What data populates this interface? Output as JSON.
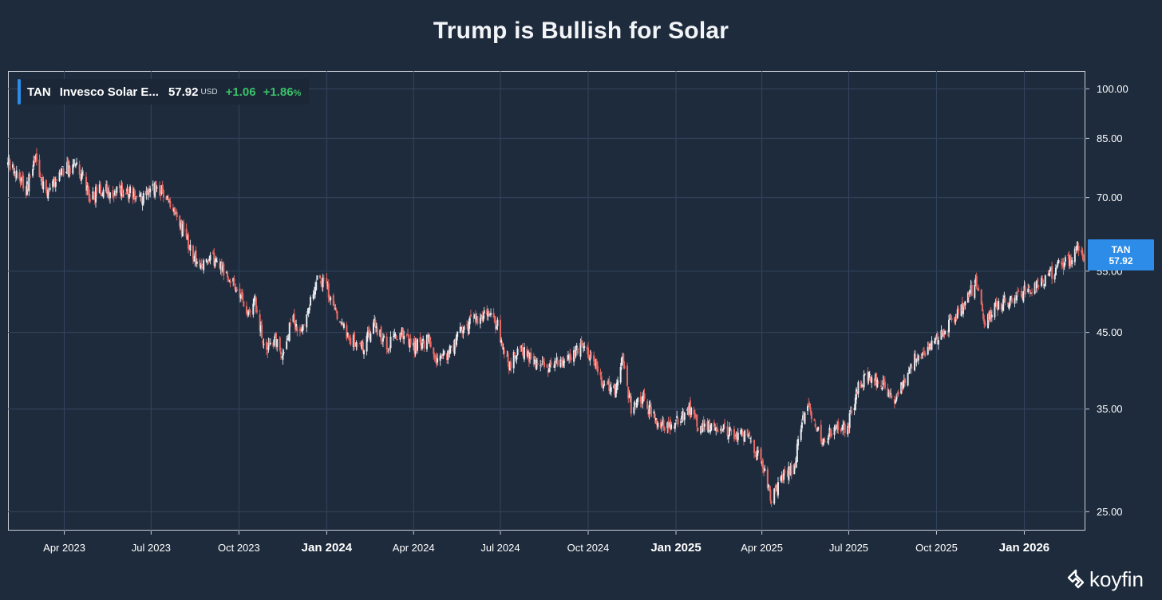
{
  "title": "Trump is Bullish for Solar",
  "legend": {
    "ticker": "TAN",
    "name": "Invesco Solar E...",
    "price": "57.92",
    "currency": "USD",
    "change": "+1.06",
    "change_pct": "+1.86",
    "pct_sign": "%"
  },
  "price_tag": {
    "ticker": "TAN",
    "price": "57.92"
  },
  "brand": "koyfin",
  "colors": {
    "background": "#1e2b3c",
    "grid": "#33465e",
    "candle_down": "#e86a64",
    "candle_up": "#e8ecf1",
    "accent": "#2c8ce8",
    "positive": "#3cc06a"
  },
  "chart_data": {
    "type": "candlestick",
    "title": "Trump is Bullish for Solar",
    "series_name": "TAN",
    "scale": "log",
    "ylim": [
      23.5,
      106
    ],
    "y_ticks": [
      25,
      35,
      45,
      55,
      70,
      85,
      100
    ],
    "y_tick_labels": [
      "25.00",
      "35.00",
      "45.00",
      "55.00",
      "70.00",
      "85.00",
      "100.00"
    ],
    "xlim": [
      "2023-02-01",
      "2026-03-06"
    ],
    "x_ticks": [
      {
        "date": "2023-04-01",
        "label": "Apr 2023",
        "major": false
      },
      {
        "date": "2023-07-01",
        "label": "Jul 2023",
        "major": false
      },
      {
        "date": "2023-10-01",
        "label": "Oct 2023",
        "major": false
      },
      {
        "date": "2024-01-01",
        "label": "Jan 2024",
        "major": true
      },
      {
        "date": "2024-04-01",
        "label": "Apr 2024",
        "major": false
      },
      {
        "date": "2024-07-01",
        "label": "Jul 2024",
        "major": false
      },
      {
        "date": "2024-10-01",
        "label": "Oct 2024",
        "major": false
      },
      {
        "date": "2025-01-01",
        "label": "Jan 2025",
        "major": true
      },
      {
        "date": "2025-04-01",
        "label": "Apr 2025",
        "major": false
      },
      {
        "date": "2025-07-01",
        "label": "Jul 2025",
        "major": false
      },
      {
        "date": "2025-10-01",
        "label": "Oct 2025",
        "major": false
      },
      {
        "date": "2026-01-01",
        "label": "Jan 2026",
        "major": true
      }
    ],
    "close_path": [
      [
        "2023-02-01",
        78
      ],
      [
        "2023-02-10",
        75
      ],
      [
        "2023-02-20",
        72
      ],
      [
        "2023-03-02",
        79
      ],
      [
        "2023-03-12",
        71
      ],
      [
        "2023-03-22",
        73
      ],
      [
        "2023-04-02",
        77
      ],
      [
        "2023-04-15",
        78
      ],
      [
        "2023-04-28",
        70
      ],
      [
        "2023-05-10",
        72
      ],
      [
        "2023-05-22",
        71
      ],
      [
        "2023-06-05",
        72
      ],
      [
        "2023-06-18",
        69
      ],
      [
        "2023-06-30",
        72
      ],
      [
        "2023-07-10",
        72
      ],
      [
        "2023-07-22",
        68
      ],
      [
        "2023-08-05",
        62
      ],
      [
        "2023-08-20",
        56
      ],
      [
        "2023-09-02",
        58
      ],
      [
        "2023-09-15",
        55
      ],
      [
        "2023-10-01",
        52
      ],
      [
        "2023-10-10",
        47
      ],
      [
        "2023-10-18",
        50
      ],
      [
        "2023-10-28",
        42
      ],
      [
        "2023-11-08",
        44
      ],
      [
        "2023-11-15",
        41
      ],
      [
        "2023-11-25",
        47
      ],
      [
        "2023-12-05",
        45
      ],
      [
        "2023-12-12",
        49
      ],
      [
        "2023-12-22",
        54
      ],
      [
        "2024-01-01",
        52
      ],
      [
        "2024-01-12",
        48
      ],
      [
        "2024-01-25",
        44
      ],
      [
        "2024-02-08",
        43
      ],
      [
        "2024-02-20",
        46
      ],
      [
        "2024-03-05",
        43
      ],
      [
        "2024-03-18",
        45
      ],
      [
        "2024-04-02",
        43
      ],
      [
        "2024-04-16",
        44
      ],
      [
        "2024-04-26",
        41
      ],
      [
        "2024-05-08",
        42
      ],
      [
        "2024-05-20",
        45
      ],
      [
        "2024-06-02",
        47
      ],
      [
        "2024-06-15",
        48
      ],
      [
        "2024-06-28",
        46
      ],
      [
        "2024-07-10",
        40
      ],
      [
        "2024-07-20",
        43
      ],
      [
        "2024-08-05",
        41
      ],
      [
        "2024-08-18",
        40
      ],
      [
        "2024-09-01",
        41
      ],
      [
        "2024-09-15",
        42
      ],
      [
        "2024-09-28",
        43
      ],
      [
        "2024-10-08",
        40
      ],
      [
        "2024-10-18",
        38
      ],
      [
        "2024-10-28",
        37
      ],
      [
        "2024-11-06",
        41
      ],
      [
        "2024-11-15",
        35
      ],
      [
        "2024-11-28",
        36
      ],
      [
        "2024-12-10",
        34
      ],
      [
        "2024-12-22",
        33
      ],
      [
        "2025-01-05",
        34
      ],
      [
        "2025-01-15",
        35
      ],
      [
        "2025-01-25",
        33
      ],
      [
        "2025-02-08",
        33
      ],
      [
        "2025-02-20",
        33
      ],
      [
        "2025-03-02",
        32
      ],
      [
        "2025-03-15",
        32
      ],
      [
        "2025-03-28",
        30
      ],
      [
        "2025-04-05",
        28
      ],
      [
        "2025-04-10",
        26
      ],
      [
        "2025-04-22",
        28
      ],
      [
        "2025-05-05",
        29
      ],
      [
        "2025-05-14",
        34
      ],
      [
        "2025-05-22",
        35
      ],
      [
        "2025-06-03",
        31
      ],
      [
        "2025-06-15",
        33
      ],
      [
        "2025-06-30",
        33
      ],
      [
        "2025-07-12",
        38
      ],
      [
        "2025-07-25",
        39
      ],
      [
        "2025-08-06",
        38
      ],
      [
        "2025-08-18",
        36
      ],
      [
        "2025-08-30",
        39
      ],
      [
        "2025-09-12",
        42
      ],
      [
        "2025-09-25",
        43
      ],
      [
        "2025-10-08",
        45
      ],
      [
        "2025-10-20",
        47
      ],
      [
        "2025-11-01",
        50
      ],
      [
        "2025-11-12",
        53
      ],
      [
        "2025-11-20",
        47
      ],
      [
        "2025-12-02",
        49
      ],
      [
        "2025-12-15",
        50
      ],
      [
        "2025-12-28",
        51
      ],
      [
        "2026-01-10",
        52
      ],
      [
        "2026-01-22",
        53
      ],
      [
        "2026-02-05",
        56
      ],
      [
        "2026-02-18",
        57
      ],
      [
        "2026-02-25",
        58.5
      ],
      [
        "2026-03-04",
        57.92
      ]
    ],
    "last_value": 57.92
  }
}
